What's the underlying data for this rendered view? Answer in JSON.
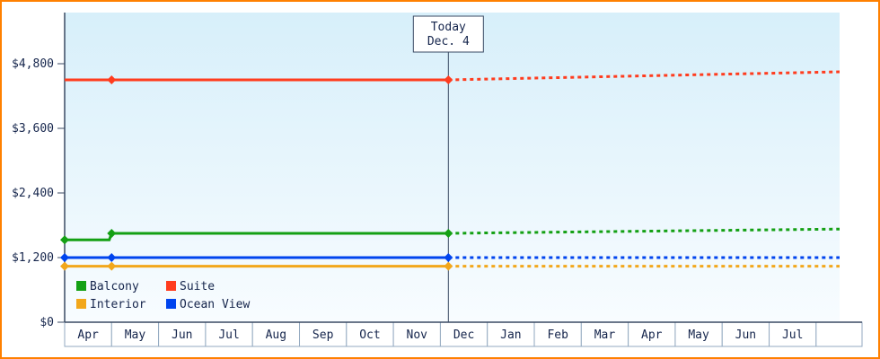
{
  "frame": {
    "border_color": "#ff8000",
    "background": "#ffffff"
  },
  "chart_data": {
    "type": "line",
    "title": "",
    "y_axis": {
      "ticks": [
        {
          "label": "$0",
          "value": 0
        },
        {
          "label": "$1,200",
          "value": 1200
        },
        {
          "label": "$2,400",
          "value": 2400
        },
        {
          "label": "$3,600",
          "value": 3600
        },
        {
          "label": "$4,800",
          "value": 4800
        }
      ],
      "ylim": [
        0,
        5750
      ]
    },
    "x_axis": {
      "categories": [
        "Apr",
        "May",
        "Jun",
        "Jul",
        "Aug",
        "Sep",
        "Oct",
        "Nov",
        "Dec",
        "Jan",
        "Feb",
        "Mar",
        "Apr",
        "May",
        "Jun",
        "Jul"
      ]
    },
    "today": {
      "label_line1": "Today",
      "label_line2": "Dec. 4",
      "x_index": 8.17
    },
    "series": [
      {
        "name": "Balcony",
        "color": "#14a014",
        "solid": [
          [
            0,
            1530
          ],
          [
            0.95,
            1530
          ],
          [
            1,
            1650
          ],
          [
            8.17,
            1650
          ]
        ],
        "dotted": [
          [
            8.17,
            1650
          ],
          [
            16.5,
            1730
          ]
        ],
        "markers": [
          [
            0,
            1530
          ],
          [
            1,
            1650
          ],
          [
            8.17,
            1650
          ]
        ]
      },
      {
        "name": "Suite",
        "color": "#ff3c1e",
        "solid": [
          [
            0,
            4500
          ],
          [
            1,
            4500
          ],
          [
            8.17,
            4500
          ]
        ],
        "dotted": [
          [
            8.17,
            4500
          ],
          [
            16.5,
            4650
          ]
        ],
        "markers": [
          [
            1,
            4500
          ],
          [
            8.17,
            4500
          ]
        ]
      },
      {
        "name": "Interior",
        "color": "#f2a71b",
        "solid": [
          [
            0,
            1040
          ],
          [
            1,
            1040
          ],
          [
            8.17,
            1040
          ]
        ],
        "dotted": [
          [
            8.17,
            1040
          ],
          [
            16.5,
            1040
          ]
        ],
        "markers": [
          [
            0,
            1040
          ],
          [
            1,
            1040
          ],
          [
            8.17,
            1040
          ]
        ]
      },
      {
        "name": "Ocean View",
        "color": "#0044ee",
        "solid": [
          [
            0,
            1200
          ],
          [
            1,
            1200
          ],
          [
            8.17,
            1200
          ]
        ],
        "dotted": [
          [
            8.17,
            1200
          ],
          [
            16.5,
            1200
          ]
        ],
        "markers": [
          [
            0,
            1200
          ],
          [
            1,
            1200
          ],
          [
            8.17,
            1200
          ]
        ]
      }
    ],
    "legend": {
      "rows": [
        [
          "Balcony",
          "Suite"
        ],
        [
          "Interior",
          "Ocean View"
        ]
      ]
    },
    "plot": {
      "bg_top": "#d7effa",
      "bg_bottom": "#f8fcff",
      "axis_color": "#3a4a63",
      "text_color": "#15254c",
      "cell_border_color": "#93a9c0",
      "cell_fill": "#ffffff",
      "today_box_fill": "#ffffff"
    }
  }
}
